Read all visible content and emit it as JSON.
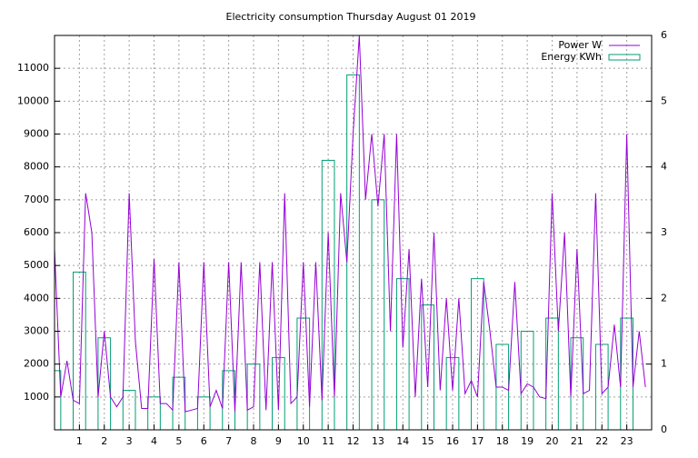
{
  "chart_data": {
    "type": "line",
    "title": "Electricity consumption Thursday August 01 2019",
    "x": [
      0,
      0.25,
      0.5,
      0.75,
      1,
      1.25,
      1.5,
      1.75,
      2,
      2.25,
      2.5,
      2.75,
      3,
      3.25,
      3.5,
      3.75,
      4,
      4.25,
      4.5,
      4.75,
      5,
      5.25,
      5.5,
      5.75,
      6,
      6.25,
      6.5,
      6.75,
      7,
      7.25,
      7.5,
      7.75,
      8,
      8.25,
      8.5,
      8.75,
      9,
      9.25,
      9.5,
      9.75,
      10,
      10.25,
      10.5,
      10.75,
      11,
      11.25,
      11.5,
      11.75,
      12,
      12.25,
      12.5,
      12.75,
      13,
      13.25,
      13.5,
      13.75,
      14,
      14.25,
      14.5,
      14.75,
      15,
      15.25,
      15.5,
      15.75,
      16,
      16.25,
      16.5,
      16.75,
      17,
      17.25,
      17.5,
      17.75,
      18,
      18.25,
      18.5,
      18.75,
      19,
      19.25,
      19.5,
      19.75,
      20,
      20.25,
      20.5,
      20.75,
      21,
      21.25,
      21.5,
      21.75,
      22,
      22.25,
      22.5,
      22.75,
      23,
      23.25,
      23.5,
      23.75
    ],
    "series": [
      {
        "name": "Power W",
        "color": "#9400d3",
        "axis": "y",
        "values": [
          5500,
          1000,
          2100,
          900,
          800,
          7200,
          6000,
          1000,
          3000,
          1000,
          700,
          1000,
          7200,
          2700,
          650,
          650,
          5200,
          800,
          800,
          600,
          5100,
          550,
          600,
          650,
          5100,
          700,
          1200,
          650,
          5100,
          550,
          5100,
          600,
          700,
          5100,
          600,
          5100,
          600,
          7200,
          800,
          1000,
          5100,
          700,
          5100,
          900,
          6000,
          1000,
          7200,
          5100,
          9000,
          12000,
          7000,
          9000,
          6800,
          9000,
          3000,
          9000,
          2500,
          5500,
          1000,
          4600,
          1300,
          6000,
          1200,
          4000,
          1200,
          4000,
          1100,
          1500,
          1000,
          4500,
          3000,
          1300,
          1300,
          1200,
          4500,
          1100,
          1400,
          1300,
          1000,
          950,
          7200,
          3000,
          6000,
          1000,
          5500,
          1100,
          1200,
          7200,
          1100,
          1300,
          3200,
          1300,
          9000,
          1300,
          3000,
          1300
        ]
      },
      {
        "name": "Energy KWh",
        "color": "#009e73",
        "axis": "y2",
        "x": [
          0,
          1,
          2,
          3,
          4,
          5,
          6,
          7,
          8,
          9,
          10,
          11,
          12,
          13,
          14,
          15,
          16,
          17,
          18,
          19,
          20,
          21,
          22,
          23
        ],
        "values": [
          0.9,
          2.4,
          1.4,
          0.6,
          0.5,
          0.8,
          0.5,
          0.9,
          1.0,
          1.1,
          1.7,
          4.1,
          5.4,
          3.5,
          2.3,
          1.9,
          1.1,
          2.3,
          1.3,
          1.5,
          1.7,
          1.4,
          1.3,
          1.7
        ]
      }
    ],
    "xlim": [
      0,
      24
    ],
    "xticks": [
      1,
      2,
      3,
      4,
      5,
      6,
      7,
      8,
      9,
      10,
      11,
      12,
      13,
      14,
      15,
      16,
      17,
      18,
      19,
      20,
      21,
      22,
      23
    ],
    "ylim": [
      0,
      12000
    ],
    "yticks": [
      1000,
      2000,
      3000,
      4000,
      5000,
      6000,
      7000,
      8000,
      9000,
      10000,
      11000
    ],
    "y2lim": [
      0,
      6
    ],
    "y2ticks": [
      0,
      1,
      2,
      3,
      4,
      5,
      6
    ],
    "grid": true,
    "legend": "top-right"
  }
}
